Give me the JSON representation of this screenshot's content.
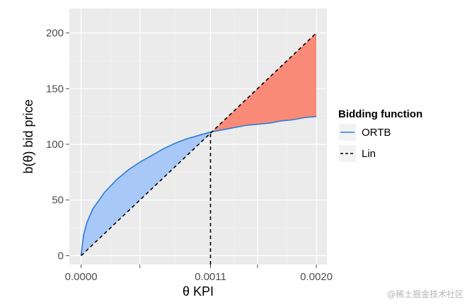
{
  "chart_data": {
    "type": "line",
    "title": "",
    "xlabel": "θ KPI",
    "ylabel": "b(θ) bid price",
    "xlim": [
      -0.0001,
      0.00209
    ],
    "ylim": [
      -8,
      222
    ],
    "x_ticks": [
      0,
      0.0005,
      0.0011,
      0.0015,
      0.002
    ],
    "x_tick_labels": [
      "0.0000",
      "",
      "0.0011",
      "",
      "0.0020"
    ],
    "y_ticks": [
      0,
      50,
      100,
      150,
      200
    ],
    "y_tick_labels": [
      "0",
      "50",
      "100",
      "150",
      "200"
    ],
    "grid": true,
    "background": "#ebebeb",
    "legend": {
      "title": "Bidding function",
      "placement": "right",
      "entries": [
        {
          "label": "ORTB",
          "style": "solid",
          "color": "#2b7bd6"
        },
        {
          "label": "Lin",
          "style": "dashed",
          "color": "#000000"
        }
      ]
    },
    "series": [
      {
        "name": "ORTB",
        "style": "solid",
        "color": "#2b7bd6",
        "x": [
          0,
          2e-05,
          5e-05,
          0.0001,
          0.0002,
          0.0003,
          0.0004,
          0.0005,
          0.0006,
          0.0007,
          0.0008,
          0.0009,
          0.001,
          0.0011,
          0.0012,
          0.0013,
          0.0014,
          0.0015,
          0.0016,
          0.0017,
          0.0018,
          0.0019,
          0.002
        ],
        "y": [
          0,
          18,
          30,
          42,
          57,
          68,
          77,
          84,
          90,
          96,
          101,
          105,
          108,
          111,
          113,
          115,
          117,
          118,
          119,
          121,
          122,
          124,
          125
        ]
      },
      {
        "name": "Lin",
        "style": "dashed",
        "color": "#000000",
        "x": [
          0,
          0.002
        ],
        "y": [
          0,
          200
        ]
      }
    ],
    "shaded_regions": [
      {
        "between": [
          "ORTB",
          "Lin"
        ],
        "x_range": [
          0,
          0.0011
        ],
        "color": "#a8c8f8"
      },
      {
        "between": [
          "Lin",
          "ORTB"
        ],
        "x_range": [
          0.0011,
          0.002
        ],
        "color": "#fa8a78"
      }
    ],
    "reference_lines": [
      {
        "orientation": "vertical",
        "x": 0.0011,
        "y_range": [
          -8,
          111
        ],
        "style": "dashed",
        "color": "#000000"
      }
    ]
  },
  "watermark": "@稀土掘金技术社区"
}
